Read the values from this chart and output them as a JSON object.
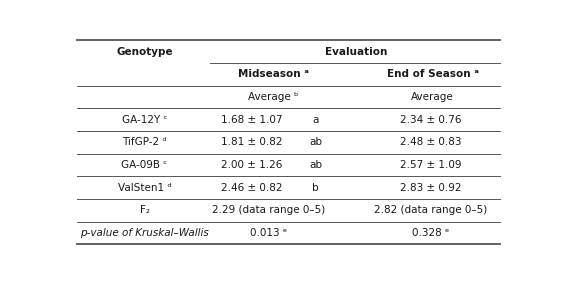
{
  "title": "Evaluation",
  "genotype_label": "Genotype",
  "midseason_label": "Midseason ᵃ",
  "endseason_label": "End of Season ᵃ",
  "avg_mid_label": "Average ᵇ",
  "avg_end_label": "Average",
  "rows": [
    {
      "genotype": "GA-12Y ᶜ",
      "midseason": "1.68 ± 1.07",
      "mid_letter": "a",
      "endseason": "2.34 ± 0.76"
    },
    {
      "genotype": "TifGP-2 ᵈ",
      "midseason": "1.81 ± 0.82",
      "mid_letter": "ab",
      "endseason": "2.48 ± 0.83"
    },
    {
      "genotype": "GA-09B ᶜ",
      "midseason": "2.00 ± 1.26",
      "mid_letter": "ab",
      "endseason": "2.57 ± 1.09"
    },
    {
      "genotype": "ValSten1 ᵈ",
      "midseason": "2.46 ± 0.82",
      "mid_letter": "b",
      "endseason": "2.83 ± 0.92"
    }
  ],
  "f2_row": {
    "genotype": "F₂",
    "midseason": "2.29 (data range 0–5)",
    "endseason": "2.82 (data range 0–5)"
  },
  "pval_row": {
    "genotype": "p-value of Kruskal–Wallis",
    "midseason": "0.013 ᵉ",
    "endseason": "0.328 ᵉ"
  },
  "bg_color": "#ffffff",
  "text_color": "#1a1a1a",
  "line_color": "#555555",
  "font_size": 7.5,
  "bold_font_size": 7.5,
  "fig_width": 5.63,
  "fig_height": 2.82,
  "dpi": 100
}
